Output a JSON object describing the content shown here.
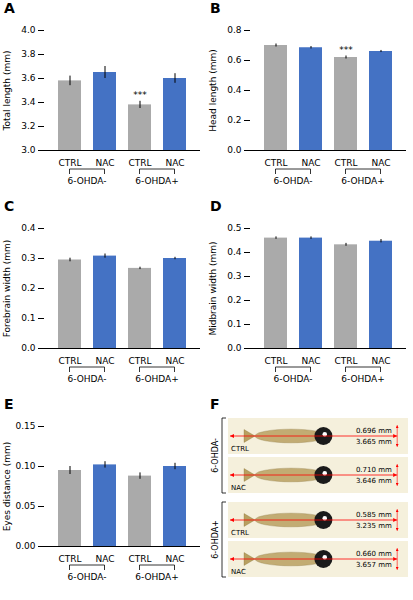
{
  "chart_data": [
    {
      "type": "bar",
      "title": "A",
      "ylabel": "Total length (mm)",
      "categories": [
        "CTRL",
        "NAC",
        "CTRL",
        "NAC"
      ],
      "group_labels": [
        "6-OHDA-",
        "6-OHDA+"
      ],
      "values": [
        3.58,
        3.65,
        3.38,
        3.6
      ],
      "errors": [
        0.04,
        0.05,
        0.03,
        0.04
      ],
      "colors": [
        "#aaaaaa",
        "#4472c4",
        "#aaaaaa",
        "#4472c4"
      ],
      "ylim": [
        3.0,
        4.0
      ],
      "yticks": [
        {
          "value": 3.0,
          "label": "3.0"
        },
        3.2,
        3.4,
        3.6,
        3.8,
        {
          "value": 4.0,
          "label": "4.0"
        }
      ],
      "annotations": [
        {
          "index": 2,
          "text": "***"
        }
      ],
      "grid": false
    },
    {
      "type": "bar",
      "title": "B",
      "ylabel": "Head length (mm)",
      "categories": [
        "CTRL",
        "NAC",
        "CTRL",
        "NAC"
      ],
      "group_labels": [
        "6-OHDA-",
        "6-OHDA+"
      ],
      "values": [
        0.7,
        0.685,
        0.62,
        0.66
      ],
      "errors": [
        0.01,
        0.008,
        0.01,
        0.007
      ],
      "colors": [
        "#aaaaaa",
        "#4472c4",
        "#aaaaaa",
        "#4472c4"
      ],
      "ylim": [
        0.0,
        0.8
      ],
      "yticks": [
        {
          "value": 0.0,
          "label": "0.0"
        },
        0.2,
        0.4,
        0.6,
        0.8
      ],
      "annotations": [
        {
          "index": 2,
          "text": "***"
        }
      ],
      "grid": false
    },
    {
      "type": "bar",
      "title": "C",
      "ylabel": "Forebrain width (mm)",
      "categories": [
        "CTRL",
        "NAC",
        "CTRL",
        "NAC"
      ],
      "group_labels": [
        "6-OHDA-",
        "6-OHDA+"
      ],
      "values": [
        0.295,
        0.308,
        0.267,
        0.3
      ],
      "errors": [
        0.006,
        0.007,
        0.004,
        0.004
      ],
      "colors": [
        "#aaaaaa",
        "#4472c4",
        "#aaaaaa",
        "#4472c4"
      ],
      "ylim": [
        0.0,
        0.4
      ],
      "yticks": [
        {
          "value": 0.0,
          "label": "0.0"
        },
        0.1,
        0.2,
        0.3,
        0.4
      ],
      "grid": false
    },
    {
      "type": "bar",
      "title": "D",
      "ylabel": "Midbrain width (mm)",
      "categories": [
        "CTRL",
        "NAC",
        "CTRL",
        "NAC"
      ],
      "group_labels": [
        "6-OHDA-",
        "6-OHDA+"
      ],
      "values": [
        0.46,
        0.46,
        0.432,
        0.447
      ],
      "errors": [
        0.005,
        0.005,
        0.006,
        0.007
      ],
      "colors": [
        "#aaaaaa",
        "#4472c4",
        "#aaaaaa",
        "#4472c4"
      ],
      "ylim": [
        0.0,
        0.5
      ],
      "yticks": [
        {
          "value": 0.0,
          "label": "0.0"
        },
        0.1,
        0.2,
        0.3,
        0.4,
        0.5
      ],
      "grid": false
    },
    {
      "type": "bar",
      "title": "E",
      "ylabel": "Eyes distance (mm)",
      "categories": [
        "CTRL",
        "NAC",
        "CTRL",
        "NAC"
      ],
      "group_labels": [
        "6-OHDA-",
        "6-OHDA+"
      ],
      "values": [
        0.095,
        0.102,
        0.088,
        0.1
      ],
      "errors": [
        0.005,
        0.004,
        0.004,
        0.004
      ],
      "colors": [
        "#aaaaaa",
        "#4472c4",
        "#aaaaaa",
        "#4472c4"
      ],
      "ylim": [
        0.0,
        0.15
      ],
      "yticks": [
        {
          "value": 0.0,
          "label": "0.00"
        },
        0.05,
        {
          "value": 0.1,
          "label": "0.10"
        },
        0.15
      ],
      "grid": false
    },
    {
      "type": "illustration",
      "title": "F",
      "rows": [
        "CTRL",
        "NAC",
        "CTRL",
        "NAC"
      ],
      "group_labels": [
        "6-OHDA-",
        "6-OHDA+"
      ],
      "color": "#f5f0dc",
      "annotations": [
        [
          "0.696 mm",
          "3.665 mm"
        ],
        [
          "0.710 mm",
          "3.646 mm"
        ],
        [
          "0.585 mm",
          "3.235 mm"
        ],
        [
          "0.660 mm",
          "3.657 mm"
        ]
      ]
    }
  ]
}
